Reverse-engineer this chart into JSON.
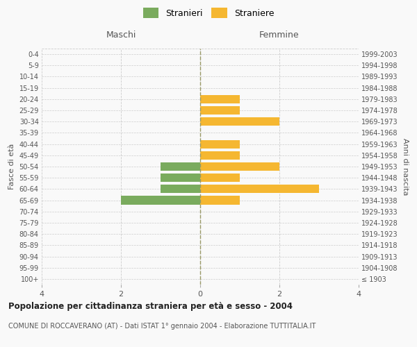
{
  "age_groups": [
    "100+",
    "95-99",
    "90-94",
    "85-89",
    "80-84",
    "75-79",
    "70-74",
    "65-69",
    "60-64",
    "55-59",
    "50-54",
    "45-49",
    "40-44",
    "35-39",
    "30-34",
    "25-29",
    "20-24",
    "15-19",
    "10-14",
    "5-9",
    "0-4"
  ],
  "birth_years": [
    "≤ 1903",
    "1904-1908",
    "1909-1913",
    "1914-1918",
    "1919-1923",
    "1924-1928",
    "1929-1933",
    "1934-1938",
    "1939-1943",
    "1944-1948",
    "1949-1953",
    "1954-1958",
    "1959-1963",
    "1964-1968",
    "1969-1973",
    "1974-1978",
    "1979-1983",
    "1984-1988",
    "1989-1993",
    "1994-1998",
    "1999-2003"
  ],
  "maschi": [
    0,
    0,
    0,
    0,
    0,
    0,
    0,
    2,
    1,
    1,
    1,
    0,
    0,
    0,
    0,
    0,
    0,
    0,
    0,
    0,
    0
  ],
  "femmine": [
    0,
    0,
    0,
    0,
    0,
    0,
    0,
    1,
    3,
    1,
    2,
    1,
    1,
    0,
    2,
    1,
    1,
    0,
    0,
    0,
    0
  ],
  "color_maschi": "#7aab5e",
  "color_femmine": "#f5b731",
  "xlim": 4,
  "title": "Popolazione per cittadinanza straniera per età e sesso - 2004",
  "subtitle": "COMUNE DI ROCCAVERANO (AT) - Dati ISTAT 1° gennaio 2004 - Elaborazione TUTTITALIA.IT",
  "ylabel_left": "Fasce di età",
  "ylabel_right": "Anni di nascita",
  "legend_maschi": "Stranieri",
  "legend_femmine": "Straniere",
  "header_maschi": "Maschi",
  "header_femmine": "Femmine",
  "bg_color": "#f9f9f9",
  "grid_color": "#cccccc",
  "bar_height": 0.75
}
